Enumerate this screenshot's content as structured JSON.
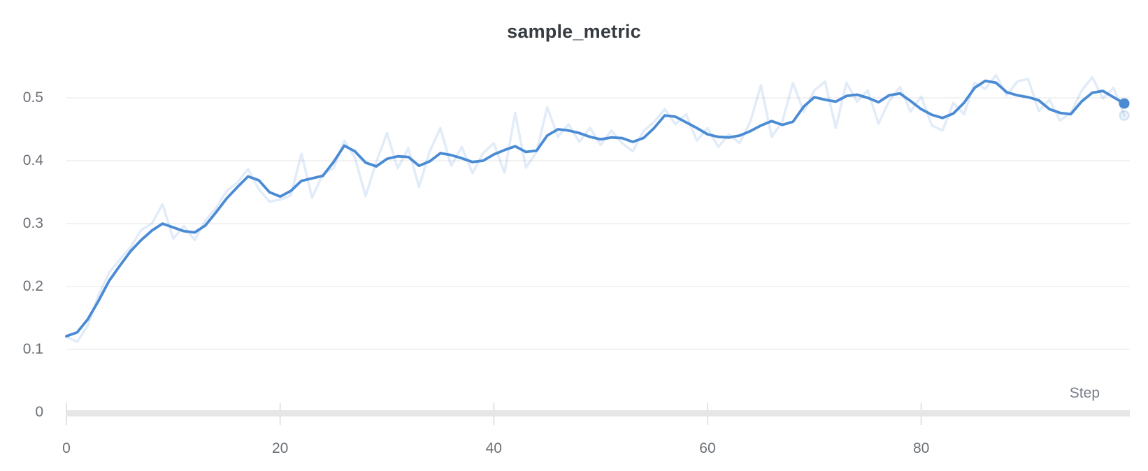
{
  "title": "sample_metric",
  "x_axis_label": "Step",
  "colors": {
    "background": "#ffffff",
    "line": "#4a8bd4",
    "raw_line_opacity": 0.16,
    "grid": "#eaeaea",
    "axis_bar": "#e6e6e6",
    "tick_mark": "#e3e3e3",
    "title_text": "#353b41",
    "tick_text": "#6b7077",
    "axis_label_text": "#797e86"
  },
  "chart_data": {
    "type": "line",
    "title": "sample_metric",
    "xlabel": "Step",
    "ylabel": "",
    "x_start": 0,
    "x_step": 1,
    "xlim": [
      0,
      99
    ],
    "ylim": [
      0,
      0.555
    ],
    "xticks": [
      0,
      20,
      40,
      60,
      80
    ],
    "yticks": [
      0,
      0.1,
      0.2,
      0.3,
      0.4,
      0.5
    ],
    "grid": "horizontal-only",
    "legend": "none",
    "series": [
      {
        "name": "sample_metric (raw)",
        "style": "faint",
        "values": [
          0.12,
          0.112,
          0.138,
          0.186,
          0.222,
          0.243,
          0.262,
          0.29,
          0.3,
          0.331,
          0.276,
          0.296,
          0.274,
          0.305,
          0.325,
          0.352,
          0.365,
          0.387,
          0.355,
          0.335,
          0.338,
          0.345,
          0.411,
          0.341,
          0.379,
          0.388,
          0.432,
          0.405,
          0.344,
          0.398,
          0.444,
          0.388,
          0.42,
          0.358,
          0.415,
          0.452,
          0.392,
          0.422,
          0.38,
          0.412,
          0.428,
          0.381,
          0.476,
          0.389,
          0.414,
          0.485,
          0.438,
          0.458,
          0.43,
          0.452,
          0.425,
          0.448,
          0.428,
          0.415,
          0.447,
          0.462,
          0.482,
          0.458,
          0.474,
          0.432,
          0.452,
          0.422,
          0.442,
          0.428,
          0.462,
          0.52,
          0.438,
          0.462,
          0.524,
          0.478,
          0.512,
          0.526,
          0.452,
          0.524,
          0.494,
          0.512,
          0.459,
          0.495,
          0.517,
          0.478,
          0.502,
          0.456,
          0.448,
          0.492,
          0.474,
          0.524,
          0.514,
          0.536,
          0.504,
          0.526,
          0.53,
          0.479,
          0.497,
          0.464,
          0.476,
          0.511,
          0.533,
          0.499,
          0.516,
          0.472
        ]
      },
      {
        "name": "sample_metric (smoothed)",
        "style": "solid",
        "values": [
          0.121,
          0.127,
          0.148,
          0.177,
          0.209,
          0.233,
          0.256,
          0.274,
          0.289,
          0.3,
          0.294,
          0.288,
          0.286,
          0.297,
          0.318,
          0.34,
          0.358,
          0.375,
          0.369,
          0.35,
          0.343,
          0.352,
          0.368,
          0.372,
          0.376,
          0.398,
          0.424,
          0.415,
          0.397,
          0.391,
          0.403,
          0.407,
          0.406,
          0.392,
          0.399,
          0.412,
          0.409,
          0.404,
          0.398,
          0.4,
          0.41,
          0.417,
          0.423,
          0.414,
          0.416,
          0.44,
          0.45,
          0.448,
          0.444,
          0.438,
          0.434,
          0.437,
          0.436,
          0.43,
          0.436,
          0.452,
          0.472,
          0.47,
          0.461,
          0.452,
          0.442,
          0.438,
          0.437,
          0.44,
          0.447,
          0.456,
          0.463,
          0.457,
          0.462,
          0.486,
          0.501,
          0.497,
          0.494,
          0.503,
          0.505,
          0.5,
          0.493,
          0.504,
          0.507,
          0.495,
          0.482,
          0.473,
          0.468,
          0.475,
          0.492,
          0.516,
          0.527,
          0.524,
          0.509,
          0.504,
          0.501,
          0.496,
          0.482,
          0.476,
          0.474,
          0.494,
          0.508,
          0.511,
          0.501,
          0.491
        ]
      }
    ],
    "end_markers": [
      {
        "series": "smoothed",
        "x": 99,
        "y": 0.491,
        "style": "solid-dot"
      },
      {
        "series": "raw",
        "x": 99,
        "y": 0.472,
        "style": "faint-dot"
      }
    ]
  }
}
